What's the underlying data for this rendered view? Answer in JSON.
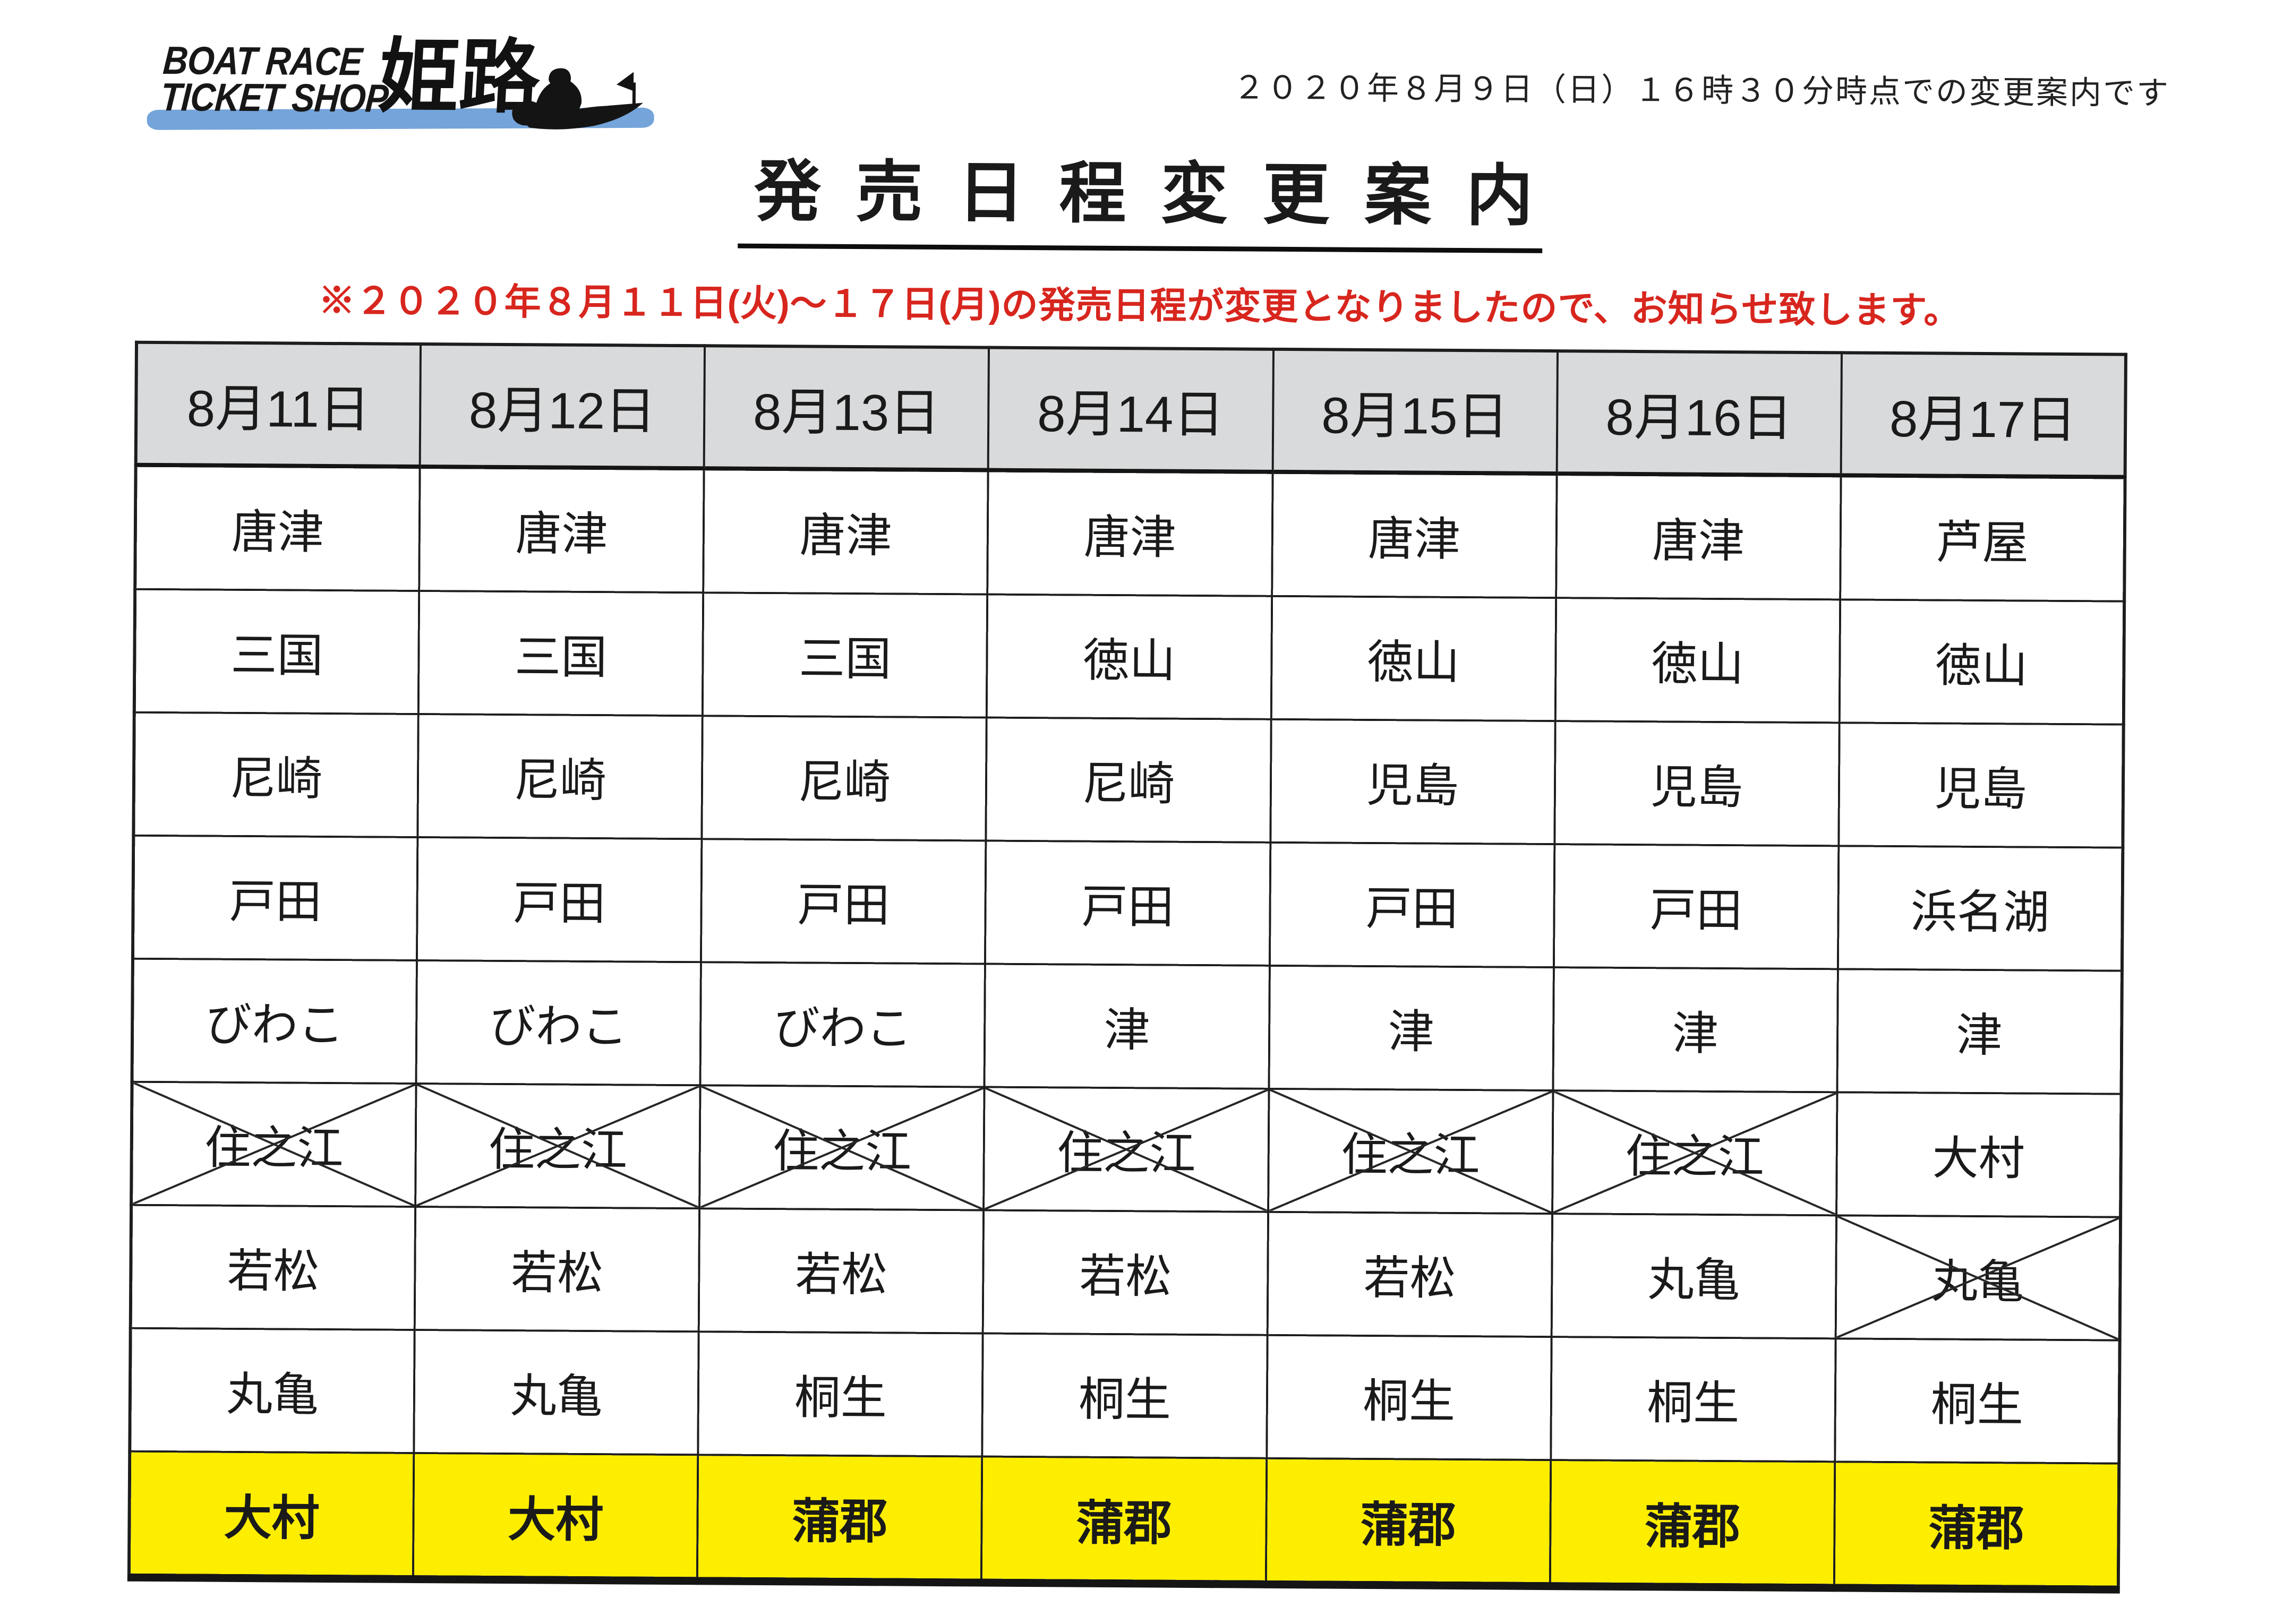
{
  "logo": {
    "text_line1": "BOAT RACE",
    "text_line2": "TICKET SHOP",
    "shop_name": "姫路",
    "boat_icon": "boat-racer-silhouette",
    "wave_color": "#74a4da",
    "ink_color": "#161616"
  },
  "header_note": "２０２０年８月９日（日）１６時３０分時点での変更案内です",
  "title": "発売日程変更案内",
  "notice": {
    "text": "※２０２０年８月１１日(火)～１７日(月)の発売日程が変更となりましたので、お知らせ致します。",
    "color": "#d7261e"
  },
  "table": {
    "header_bg": "#d9dadb",
    "highlight_bg": "#fdee00",
    "border_color": "#1d1d1d",
    "columns": [
      "8月11日",
      "8月12日",
      "8月13日",
      "8月14日",
      "8月15日",
      "8月16日",
      "8月17日"
    ],
    "rows": [
      {
        "cells": [
          "唐津",
          "唐津",
          "唐津",
          "唐津",
          "唐津",
          "唐津",
          "芦屋"
        ]
      },
      {
        "cells": [
          "三国",
          "三国",
          "三国",
          "徳山",
          "徳山",
          "徳山",
          "徳山"
        ]
      },
      {
        "cells": [
          "尼崎",
          "尼崎",
          "尼崎",
          "尼崎",
          "児島",
          "児島",
          "児島"
        ]
      },
      {
        "cells": [
          "戸田",
          "戸田",
          "戸田",
          "戸田",
          "戸田",
          "戸田",
          "浜名湖"
        ]
      },
      {
        "cells": [
          "びわこ",
          "びわこ",
          "びわこ",
          "津",
          "津",
          "津",
          "津"
        ]
      },
      {
        "cells": [
          "住之江",
          "住之江",
          "住之江",
          "住之江",
          "住之江",
          "住之江",
          "大村"
        ],
        "crossed": [
          true,
          true,
          true,
          true,
          true,
          true,
          false
        ]
      },
      {
        "cells": [
          "若松",
          "若松",
          "若松",
          "若松",
          "若松",
          "丸亀",
          "丸亀"
        ],
        "crossed": [
          false,
          false,
          false,
          false,
          false,
          false,
          true
        ]
      },
      {
        "cells": [
          "丸亀",
          "丸亀",
          "桐生",
          "桐生",
          "桐生",
          "桐生",
          "桐生"
        ]
      },
      {
        "cells": [
          "大村",
          "大村",
          "蒲郡",
          "蒲郡",
          "蒲郡",
          "蒲郡",
          "蒲郡"
        ],
        "highlight": true
      }
    ]
  }
}
